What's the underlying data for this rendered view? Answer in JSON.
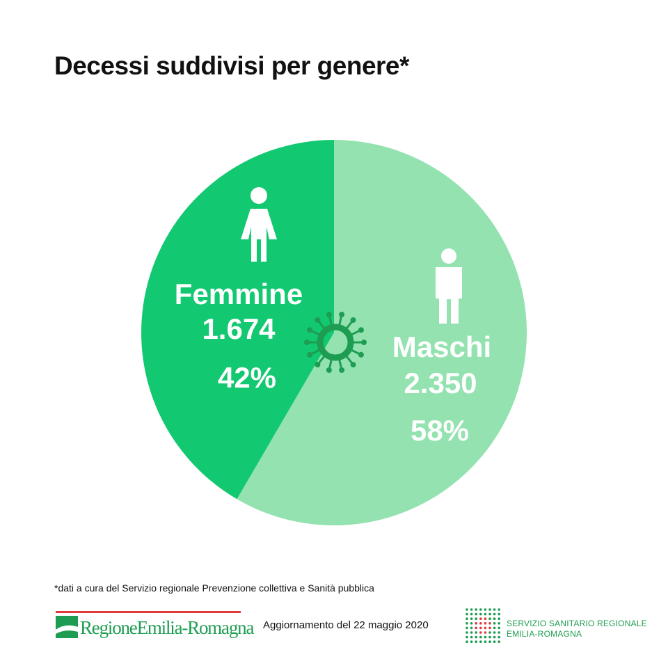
{
  "title": "Decessi suddivisi per genere*",
  "colors": {
    "femmine": "#12c870",
    "maschi": "#93e2b0",
    "brand_green": "#1e9d52",
    "brand_red": "#e03a3e"
  },
  "chart_data": {
    "type": "pie",
    "title": "Decessi suddivisi per genere*",
    "slices": [
      {
        "label": "Femmine",
        "value_text": "1.674",
        "value": 1674,
        "percent_text": "42%",
        "percent": 42,
        "icon": "woman-icon"
      },
      {
        "label": "Maschi",
        "value_text": "2.350",
        "value": 2350,
        "percent_text": "58%",
        "percent": 58,
        "icon": "man-icon"
      }
    ],
    "center_icon": "virus-icon"
  },
  "footnote": "*dati a cura del Servizio regionale Prevenzione collettiva e Sanità pubblica",
  "footer": {
    "region_logo": {
      "part1": "Regione",
      "part2": "Emilia-Romagna"
    },
    "update": "Aggiornamento del 22 maggio 2020",
    "ssr_line1": "SERVIZIO SANITARIO REGIONALE",
    "ssr_line2": "EMILIA-ROMAGNA"
  }
}
